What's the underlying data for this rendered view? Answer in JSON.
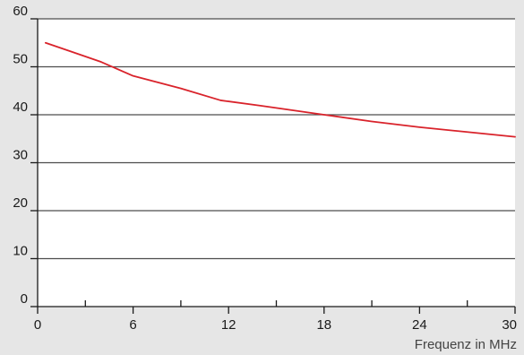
{
  "chart_data": {
    "type": "line",
    "title": "",
    "xlabel": "Frequenz in MHz",
    "ylabel": "",
    "xlim": [
      0,
      30
    ],
    "ylim": [
      0,
      60
    ],
    "x_ticks": [
      0,
      6,
      12,
      18,
      24,
      30
    ],
    "x_minor_ticks": [
      3,
      9,
      15,
      21,
      27
    ],
    "y_ticks": [
      0,
      10,
      20,
      30,
      40,
      50,
      60
    ],
    "grid": "horizontal",
    "legend": "none",
    "colors": {
      "background": "#e6e6e6",
      "plot_background": "#ffffff",
      "grid": "#4d4d4d",
      "axis": "#1a1a1a",
      "series": "#d9232b"
    },
    "series": [
      {
        "values": [
          [
            0.5,
            55
          ],
          [
            2.0,
            53.3
          ],
          [
            4.0,
            51.0
          ],
          [
            6.0,
            48.1
          ],
          [
            9.0,
            45.5
          ],
          [
            11.5,
            43.0
          ],
          [
            14.0,
            41.9
          ],
          [
            18.0,
            40.0
          ],
          [
            21.0,
            38.6
          ],
          [
            24.0,
            37.4
          ],
          [
            27.0,
            36.4
          ],
          [
            30.0,
            35.4
          ]
        ]
      }
    ]
  }
}
